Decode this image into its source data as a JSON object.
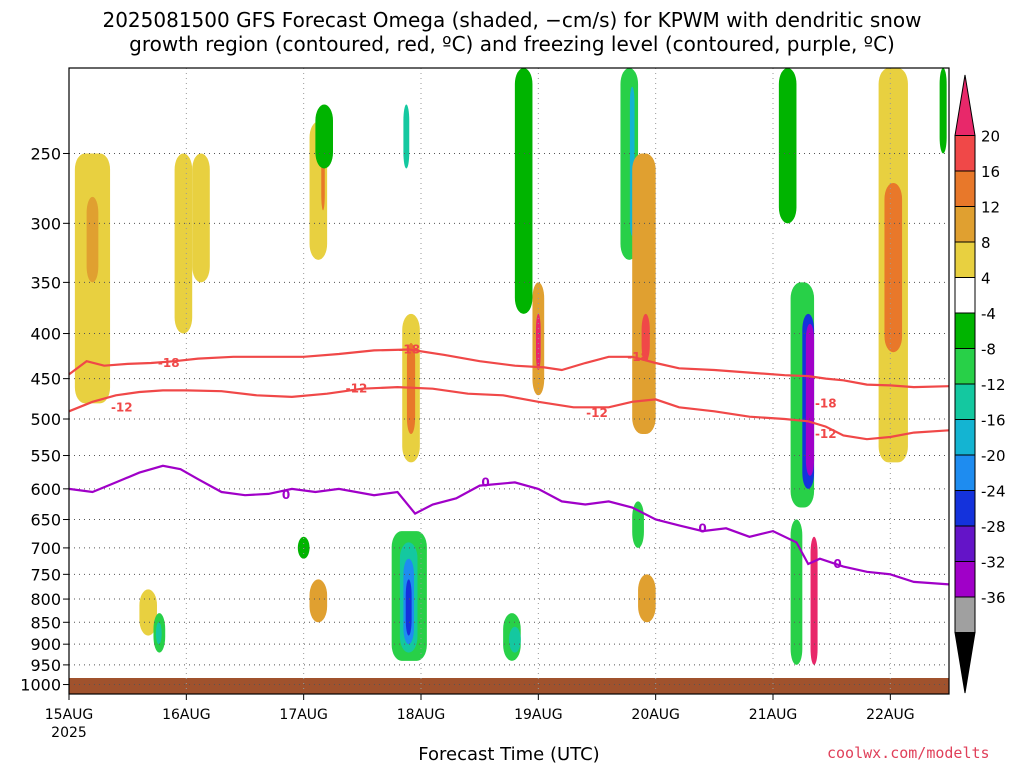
{
  "title": "2025081500 GFS Forecast Omega (shaded, −cm/s) for KPWM with dendritic snow\ngrowth region (contoured, red, ºC) and freezing level (contoured, purple, ºC)",
  "xlabel": "Forecast Time (UTC)",
  "credit": "coolwx.com/modelts",
  "colors": {
    "grid": "#555555",
    "red_contour": "#f04848",
    "purple_contour": "#a000c8",
    "ground": "#a0522d"
  },
  "chart_data": {
    "type": "heatmap",
    "title": "2025081500 GFS Forecast Omega (shaded, −cm/s) for KPWM with dendritic snow growth region (contoured, red, ºC) and freezing level (contoured, purple, ºC)",
    "xlabel": "Forecast Time (UTC)",
    "ylabel": "",
    "x_ticks": [
      "15AUG",
      "16AUG",
      "17AUG",
      "18AUG",
      "19AUG",
      "20AUG",
      "21AUG",
      "22AUG"
    ],
    "x_year_label": "2025",
    "xlim_days": [
      0,
      7.5
    ],
    "y_ticks": [
      250,
      300,
      350,
      400,
      450,
      500,
      550,
      600,
      650,
      700,
      750,
      800,
      850,
      900,
      950,
      1000
    ],
    "ylim_hpa": [
      200,
      1025
    ],
    "y_scale": "log",
    "grid": true,
    "colorbar": {
      "labels": [
        20,
        16,
        12,
        8,
        4,
        -4,
        -8,
        -12,
        -16,
        -20,
        -24,
        -28,
        -32,
        -36
      ],
      "bins": [
        {
          "color": "#e8286a"
        },
        {
          "color": "#f04848"
        },
        {
          "color": "#e8782a"
        },
        {
          "color": "#e0a030"
        },
        {
          "color": "#e8d040"
        },
        {
          "color": "#ffffff"
        },
        {
          "color": "#00b400"
        },
        {
          "color": "#28d048"
        },
        {
          "color": "#14c8a0"
        },
        {
          "color": "#14b4d2"
        },
        {
          "color": "#1e8cf0"
        },
        {
          "color": "#1432dc"
        },
        {
          "color": "#6414c8"
        },
        {
          "color": "#a000c8"
        },
        {
          "color": "#a0a0a0"
        },
        {
          "color": "#000000"
        }
      ]
    },
    "omega_features": [
      {
        "x": [
          0.05,
          0.35
        ],
        "p": [
          250,
          480
        ],
        "value": 4
      },
      {
        "x": [
          0.15,
          0.25
        ],
        "p": [
          280,
          350
        ],
        "value": 8
      },
      {
        "x": [
          0.6,
          0.75
        ],
        "p": [
          780,
          880
        ],
        "value": 4
      },
      {
        "x": [
          0.72,
          0.82
        ],
        "p": [
          830,
          920
        ],
        "value": -12
      },
      {
        "x": [
          0.74,
          0.79
        ],
        "p": [
          850,
          900
        ],
        "value": -16
      },
      {
        "x": [
          0.9,
          1.05
        ],
        "p": [
          250,
          400
        ],
        "value": 4
      },
      {
        "x": [
          1.05,
          1.2
        ],
        "p": [
          250,
          350
        ],
        "value": 4
      },
      {
        "x": [
          2.05,
          2.2
        ],
        "p": [
          230,
          330
        ],
        "value": 4
      },
      {
        "x": [
          2.15,
          2.18
        ],
        "p": [
          240,
          290
        ],
        "value": 12
      },
      {
        "x": [
          2.05,
          2.2
        ],
        "p": [
          760,
          850
        ],
        "value": 8
      },
      {
        "x": [
          1.95,
          2.05
        ],
        "p": [
          680,
          720
        ],
        "value": -8
      },
      {
        "x": [
          2.1,
          2.25
        ],
        "p": [
          220,
          260
        ],
        "value": -8
      },
      {
        "x": [
          2.75,
          3.05
        ],
        "p": [
          670,
          940
        ],
        "value": -12
      },
      {
        "x": [
          2.82,
          2.97
        ],
        "p": [
          690,
          920
        ],
        "value": -16
      },
      {
        "x": [
          2.85,
          2.94
        ],
        "p": [
          720,
          900
        ],
        "value": -24
      },
      {
        "x": [
          2.87,
          2.92
        ],
        "p": [
          760,
          880
        ],
        "value": -28
      },
      {
        "x": [
          2.84,
          2.99
        ],
        "p": [
          380,
          560
        ],
        "value": 4
      },
      {
        "x": [
          2.88,
          2.95
        ],
        "p": [
          410,
          520
        ],
        "value": 12
      },
      {
        "x": [
          2.85,
          2.9
        ],
        "p": [
          220,
          260
        ],
        "value": -16
      },
      {
        "x": [
          3.8,
          3.95
        ],
        "p": [
          200,
          380
        ],
        "value": -8
      },
      {
        "x": [
          3.7,
          3.85
        ],
        "p": [
          830,
          940
        ],
        "value": -12
      },
      {
        "x": [
          3.75,
          3.85
        ],
        "p": [
          860,
          920
        ],
        "value": -16
      },
      {
        "x": [
          3.95,
          4.05
        ],
        "p": [
          350,
          470
        ],
        "value": 8
      },
      {
        "x": [
          3.98,
          4.02
        ],
        "p": [
          380,
          440
        ],
        "value": 20
      },
      {
        "x": [
          4.7,
          4.85
        ],
        "p": [
          200,
          330
        ],
        "value": -12
      },
      {
        "x": [
          4.78,
          4.82
        ],
        "p": [
          210,
          310
        ],
        "value": -20
      },
      {
        "x": [
          4.8,
          5.0
        ],
        "p": [
          250,
          520
        ],
        "value": 8
      },
      {
        "x": [
          4.88,
          4.95
        ],
        "p": [
          380,
          430
        ],
        "value": 16
      },
      {
        "x": [
          4.85,
          5.0
        ],
        "p": [
          750,
          850
        ],
        "value": 8
      },
      {
        "x": [
          4.8,
          4.9
        ],
        "p": [
          620,
          700
        ],
        "value": -12
      },
      {
        "x": [
          6.05,
          6.2
        ],
        "p": [
          200,
          300
        ],
        "value": -8
      },
      {
        "x": [
          6.15,
          6.35
        ],
        "p": [
          350,
          630
        ],
        "value": -12
      },
      {
        "x": [
          6.25,
          6.35
        ],
        "p": [
          380,
          600
        ],
        "value": -28
      },
      {
        "x": [
          6.28,
          6.35
        ],
        "p": [
          390,
          580
        ],
        "value": -36
      },
      {
        "x": [
          6.15,
          6.25
        ],
        "p": [
          650,
          950
        ],
        "value": -12
      },
      {
        "x": [
          6.32,
          6.38
        ],
        "p": [
          680,
          950
        ],
        "value": 20
      },
      {
        "x": [
          6.9,
          7.15
        ],
        "p": [
          200,
          560
        ],
        "value": 4
      },
      {
        "x": [
          6.95,
          7.1
        ],
        "p": [
          270,
          420
        ],
        "value": 12
      },
      {
        "x": [
          7.42,
          7.48
        ],
        "p": [
          200,
          250
        ],
        "value": -8
      }
    ],
    "series": [
      {
        "name": "-18",
        "color": "#f04848",
        "x": [
          0,
          0.15,
          0.3,
          0.5,
          0.7,
          0.9,
          1.1,
          1.4,
          1.7,
          2.0,
          2.3,
          2.6,
          2.9,
          3.2,
          3.5,
          3.8,
          4.05,
          4.2,
          4.4,
          4.6,
          4.8,
          5.0,
          5.2,
          5.5,
          5.8,
          6.1,
          6.3,
          6.45,
          6.6,
          6.8,
          7.0,
          7.2,
          7.5
        ],
        "p": [
          445,
          430,
          435,
          433,
          432,
          430,
          427,
          425,
          425,
          425,
          422,
          418,
          417,
          423,
          430,
          435,
          437,
          440,
          432,
          425,
          425,
          432,
          438,
          440,
          443,
          446,
          447,
          450,
          452,
          457,
          458,
          460,
          459
        ]
      },
      {
        "name": "-12",
        "color": "#f04848",
        "x": [
          0,
          0.2,
          0.4,
          0.6,
          0.8,
          1.0,
          1.3,
          1.6,
          1.9,
          2.2,
          2.5,
          2.8,
          3.1,
          3.4,
          3.7,
          4.0,
          4.3,
          4.6,
          4.8,
          5.0,
          5.2,
          5.5,
          5.8,
          6.1,
          6.3,
          6.45,
          6.6,
          6.8,
          7.0,
          7.2,
          7.5
        ],
        "p": [
          490,
          478,
          470,
          466,
          464,
          464,
          465,
          470,
          472,
          468,
          462,
          460,
          462,
          468,
          470,
          478,
          485,
          485,
          478,
          475,
          485,
          490,
          497,
          500,
          503,
          510,
          522,
          527,
          524,
          518,
          515
        ]
      },
      {
        "name": "0",
        "color": "#a000c8",
        "x": [
          0,
          0.2,
          0.4,
          0.6,
          0.8,
          0.95,
          1.1,
          1.3,
          1.5,
          1.7,
          1.9,
          2.1,
          2.3,
          2.6,
          2.8,
          2.95,
          3.1,
          3.3,
          3.5,
          3.8,
          4.0,
          4.2,
          4.4,
          4.6,
          4.8,
          5.0,
          5.2,
          5.4,
          5.6,
          5.8,
          6.0,
          6.2,
          6.3,
          6.4,
          6.6,
          6.8,
          7.0,
          7.2,
          7.5
        ],
        "p": [
          600,
          605,
          590,
          575,
          565,
          570,
          585,
          605,
          610,
          608,
          600,
          605,
          600,
          610,
          605,
          640,
          625,
          615,
          595,
          590,
          600,
          620,
          625,
          620,
          630,
          650,
          660,
          670,
          665,
          680,
          670,
          690,
          730,
          720,
          735,
          745,
          750,
          765,
          770
        ]
      }
    ],
    "contour_labels": [
      {
        "text": "-18",
        "x": 0.85,
        "p": 432
      },
      {
        "text": "-18",
        "x": 2.9,
        "p": 417
      },
      {
        "text": "-18",
        "x": 4.85,
        "p": 425
      },
      {
        "text": "-18",
        "x": 6.45,
        "p": 480
      },
      {
        "text": "-12",
        "x": 0.45,
        "p": 485
      },
      {
        "text": "-12",
        "x": 2.45,
        "p": 462
      },
      {
        "text": "-12",
        "x": 4.5,
        "p": 492
      },
      {
        "text": "-12",
        "x": 6.45,
        "p": 520
      },
      {
        "text": "0",
        "x": 1.85,
        "p": 610
      },
      {
        "text": "0",
        "x": 3.55,
        "p": 590
      },
      {
        "text": "0",
        "x": 5.4,
        "p": 665
      },
      {
        "text": "0",
        "x": 6.55,
        "p": 730
      }
    ]
  }
}
